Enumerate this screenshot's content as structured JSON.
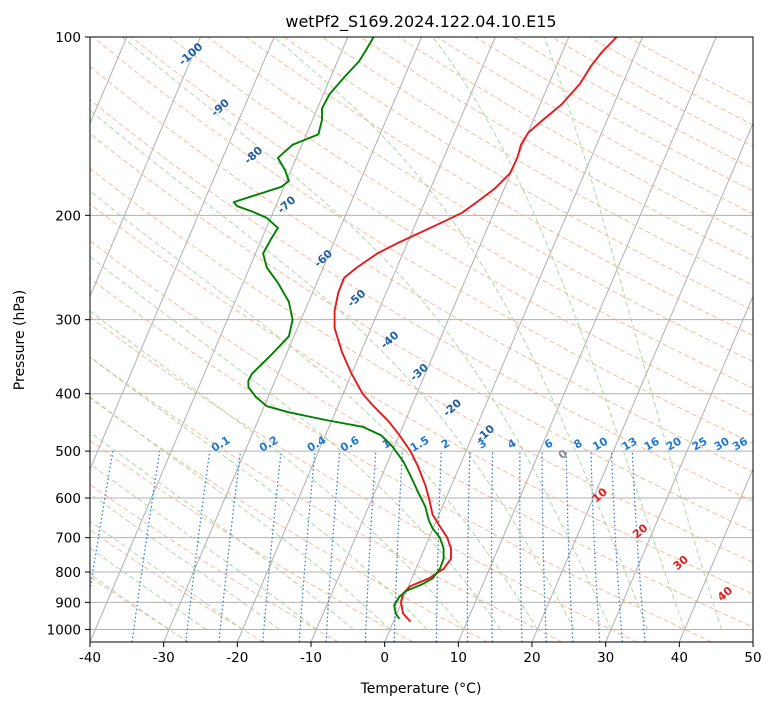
{
  "chart_data": {
    "type": "line",
    "title": "wetPf2_S169.2024.122.04.10.E15",
    "xlabel": "Temperature (°C)",
    "ylabel": "Pressure (hPa)",
    "xlim": [
      -40,
      50
    ],
    "ylim": [
      1050,
      100
    ],
    "y_scale": "log",
    "x_ticks": [
      -40,
      -30,
      -20,
      -10,
      0,
      10,
      20,
      30,
      40,
      50
    ],
    "y_ticks": [
      100,
      200,
      300,
      400,
      500,
      600,
      700,
      800,
      900,
      1000
    ],
    "grid": true,
    "colors": {
      "temperature": "#e41a1c",
      "dewpoint": "#008000",
      "isotherm": "#b0b0b0",
      "dry_adiabat": "#f4a582",
      "moist_adiabat": "#a6d5a0",
      "mixing_ratio": "#1f78d1",
      "dry_adiabat_label": "#1f5fa0",
      "moist_label": "#e41a1c"
    },
    "series": [
      {
        "key": "temperature",
        "points": [
          [
            3.5,
            970
          ],
          [
            2.5,
            940
          ],
          [
            2.2,
            900
          ],
          [
            2.5,
            870
          ],
          [
            3.5,
            845
          ],
          [
            6.0,
            820
          ],
          [
            8.0,
            790
          ],
          [
            9.0,
            760
          ],
          [
            9.0,
            730
          ],
          [
            8.5,
            700
          ],
          [
            7.5,
            670
          ],
          [
            6.5,
            640
          ],
          [
            6.0,
            600
          ],
          [
            5.5,
            570
          ],
          [
            4.5,
            530
          ],
          [
            3.5,
            500
          ],
          [
            2.0,
            470
          ],
          [
            0.5,
            445
          ],
          [
            -1.5,
            420
          ],
          [
            -3.0,
            400
          ],
          [
            -4.5,
            370
          ],
          [
            -5.8,
            340
          ],
          [
            -6.8,
            310
          ],
          [
            -6.8,
            290
          ],
          [
            -6.3,
            270
          ],
          [
            -5.5,
            255
          ],
          [
            -3.8,
            245
          ],
          [
            -1.0,
            232
          ],
          [
            2.0,
            222
          ],
          [
            5.5,
            212
          ],
          [
            8.0,
            205
          ],
          [
            10.5,
            198
          ],
          [
            12.5,
            190
          ],
          [
            15.0,
            180
          ],
          [
            17.0,
            170
          ],
          [
            18.0,
            160
          ],
          [
            18.5,
            152
          ],
          [
            19.5,
            145
          ],
          [
            21.5,
            138
          ],
          [
            24.0,
            130
          ],
          [
            26.5,
            120
          ],
          [
            28.0,
            112
          ],
          [
            29.5,
            106
          ],
          [
            31.5,
            100
          ]
        ]
      },
      {
        "key": "dewpoint",
        "points": [
          [
            2.0,
            960
          ],
          [
            1.5,
            940
          ],
          [
            1.3,
            910
          ],
          [
            2.0,
            880
          ],
          [
            3.0,
            860
          ],
          [
            5.0,
            840
          ],
          [
            6.5,
            820
          ],
          [
            7.5,
            790
          ],
          [
            8.0,
            760
          ],
          [
            8.0,
            730
          ],
          [
            7.5,
            700
          ],
          [
            6.5,
            675
          ],
          [
            6.0,
            655
          ],
          [
            5.5,
            620
          ],
          [
            4.5,
            585
          ],
          [
            3.5,
            550
          ],
          [
            2.5,
            520
          ],
          [
            1.0,
            490
          ],
          [
            -0.5,
            470
          ],
          [
            -3.0,
            455
          ],
          [
            -8.0,
            443
          ],
          [
            -13.0,
            430
          ],
          [
            -16.0,
            420
          ],
          [
            -17.5,
            405
          ],
          [
            -18.5,
            390
          ],
          [
            -18.5,
            380
          ],
          [
            -18.0,
            370
          ],
          [
            -15.5,
            345
          ],
          [
            -13.0,
            320
          ],
          [
            -12.5,
            300
          ],
          [
            -13.0,
            280
          ],
          [
            -14.5,
            260
          ],
          [
            -16.0,
            245
          ],
          [
            -16.5,
            232
          ],
          [
            -15.5,
            220
          ],
          [
            -14.5,
            210
          ],
          [
            -16.0,
            202
          ],
          [
            -18.0,
            197
          ],
          [
            -20.0,
            193
          ],
          [
            -20.5,
            190
          ],
          [
            -17.0,
            184
          ],
          [
            -14.0,
            179
          ],
          [
            -13.0,
            175
          ],
          [
            -13.5,
            168
          ],
          [
            -14.5,
            160
          ],
          [
            -12.5,
            152
          ],
          [
            -9.0,
            146
          ],
          [
            -8.5,
            138
          ],
          [
            -8.5,
            132
          ],
          [
            -7.5,
            125
          ],
          [
            -5.5,
            117
          ],
          [
            -3.5,
            110
          ],
          [
            -2.5,
            105
          ],
          [
            -1.5,
            100
          ]
        ]
      }
    ],
    "dry_adiabat_labels": [
      "-100",
      "-90",
      "-80",
      "-70",
      "-60",
      "-50",
      "-40",
      "-30",
      "-20",
      "-10"
    ],
    "moist_adiabat_labels": [
      "0",
      "10",
      "20",
      "30",
      "40"
    ],
    "mixing_ratio_labels": [
      "0.1",
      "0.2",
      "0.4",
      "0.6",
      "1",
      "1.5",
      "2",
      "3",
      "4",
      "6",
      "8",
      "10",
      "13",
      "16",
      "20",
      "25",
      "30",
      "36"
    ]
  }
}
